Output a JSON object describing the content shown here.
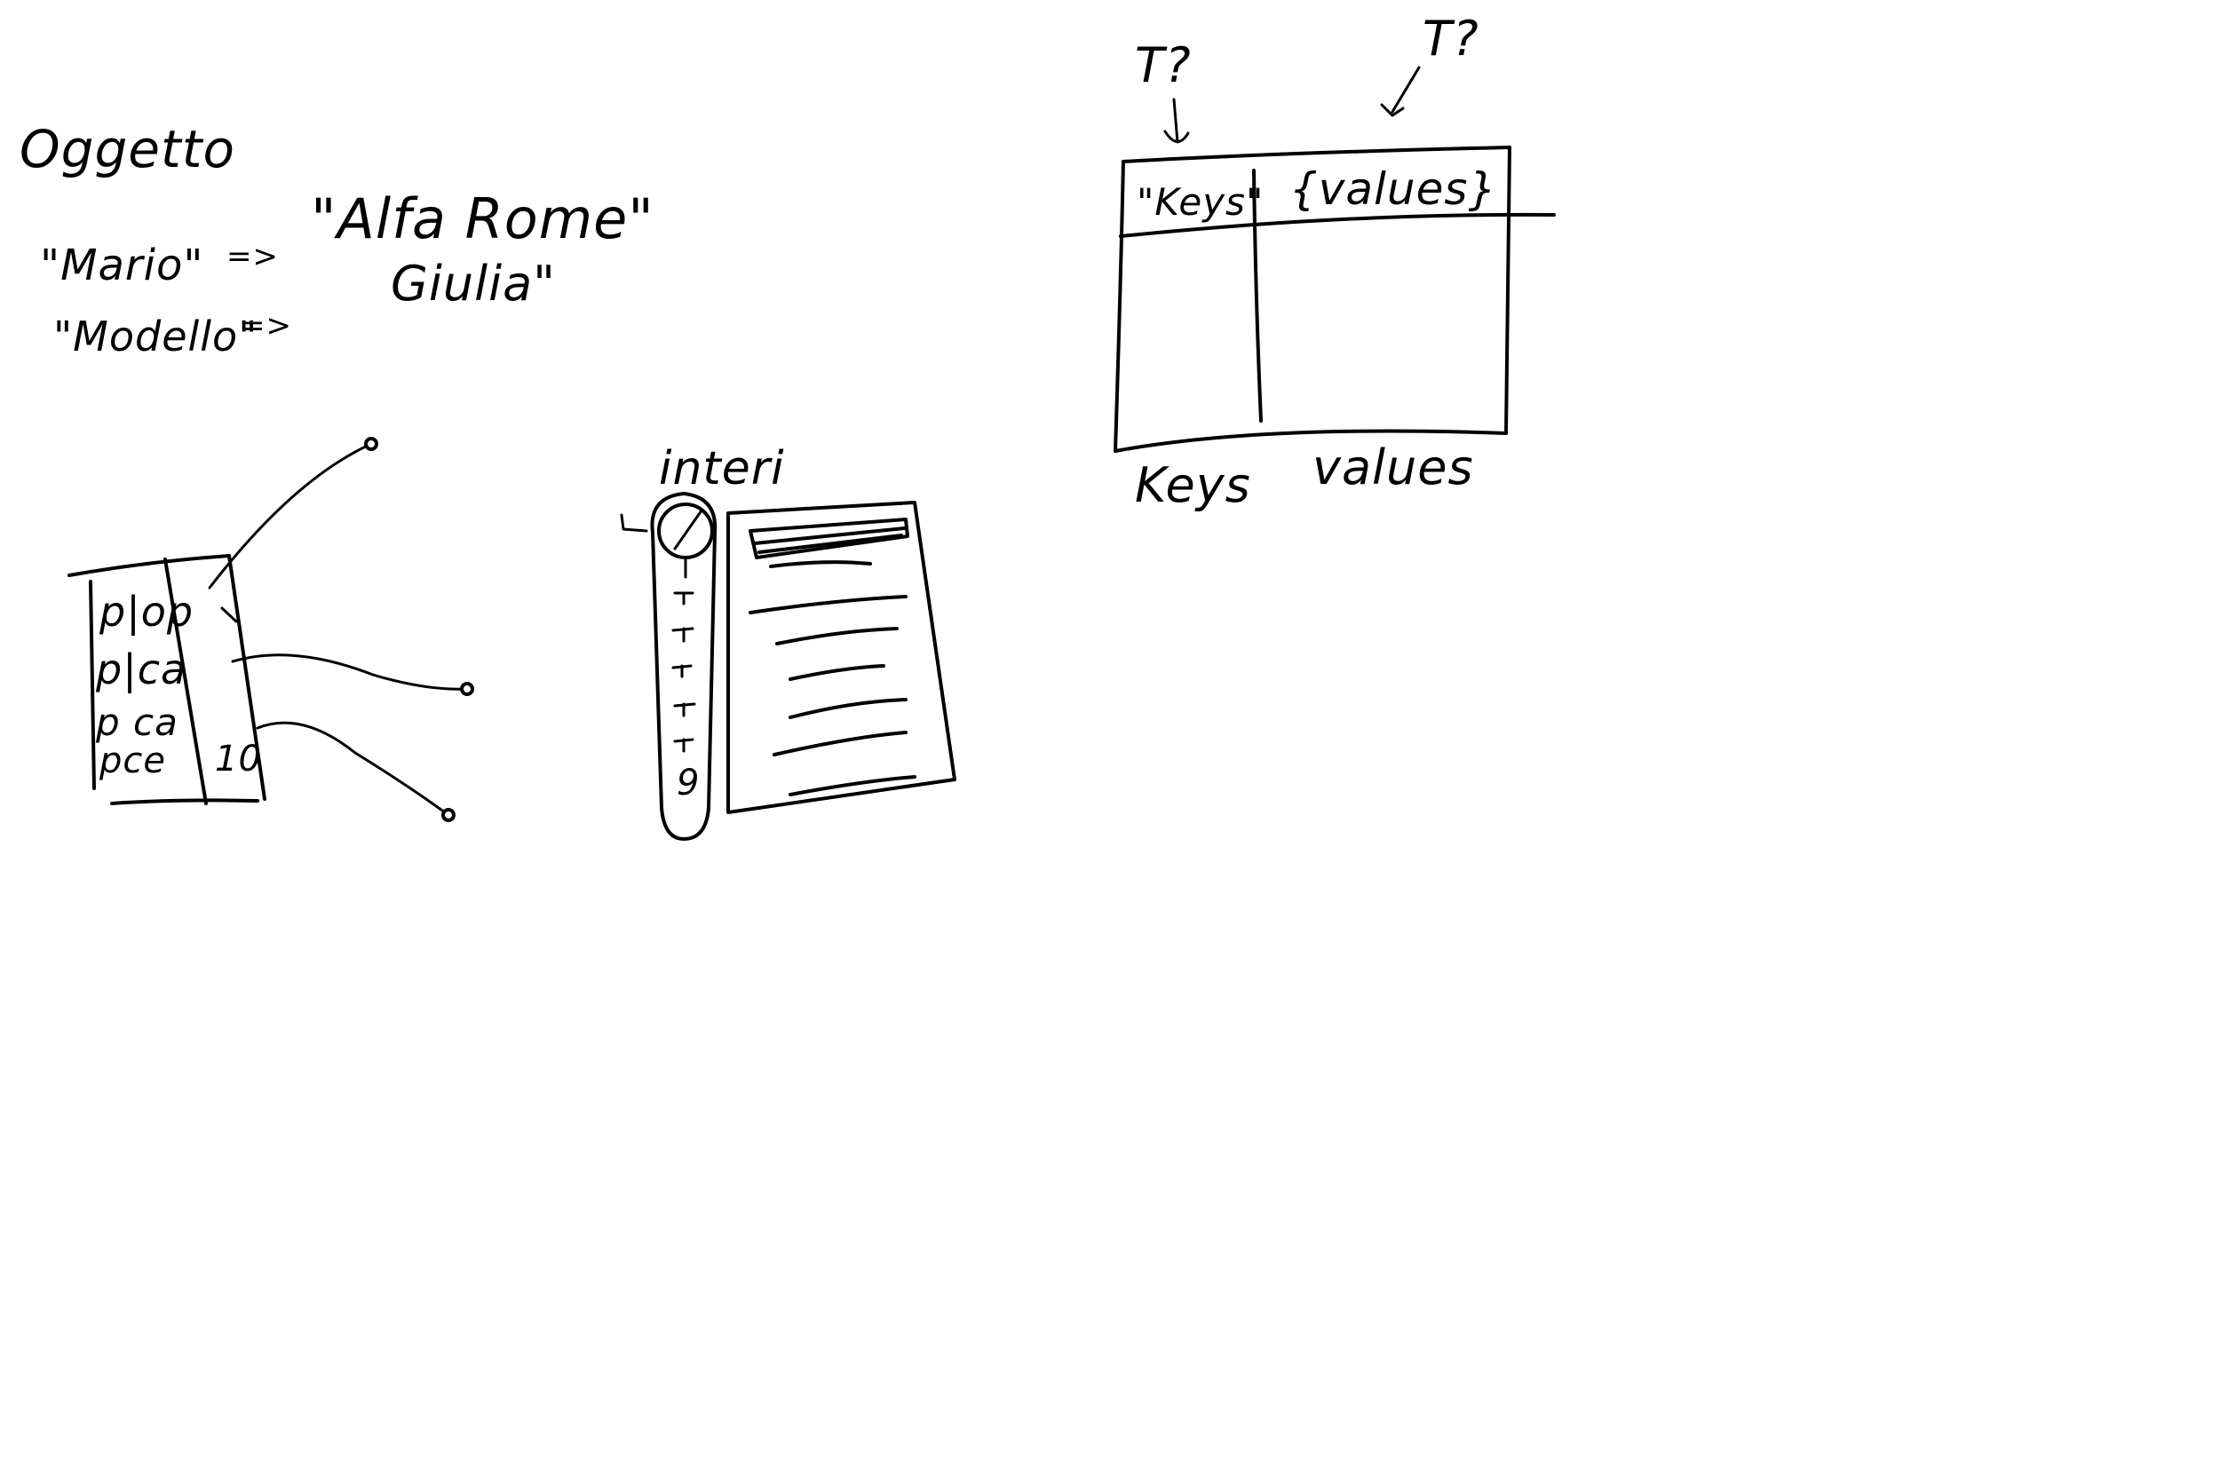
{
  "canvas": {
    "background": "#ffffff",
    "ink_color": "#000000"
  },
  "notes": {
    "title": "Oggetto",
    "pair1_key": "\"Mario\"",
    "pair1_value_line1": "\"Alfa Rome\"",
    "pair1_value_line2": "Giulia\"",
    "pair2_key": "\"Modello\"",
    "arrow": "=>"
  },
  "memory_diagram": {
    "rows": [
      "p|op",
      "p|ca",
      "p ca",
      "pce"
    ],
    "row_value": "10"
  },
  "vector_diagram": {
    "label": "interi",
    "index": "9"
  },
  "table_diagram": {
    "type_left": "T?",
    "type_right": "T?",
    "header_key": "\"Keys\"",
    "header_value": "{values}",
    "bottom_key": "Keys",
    "bottom_value": "values"
  }
}
